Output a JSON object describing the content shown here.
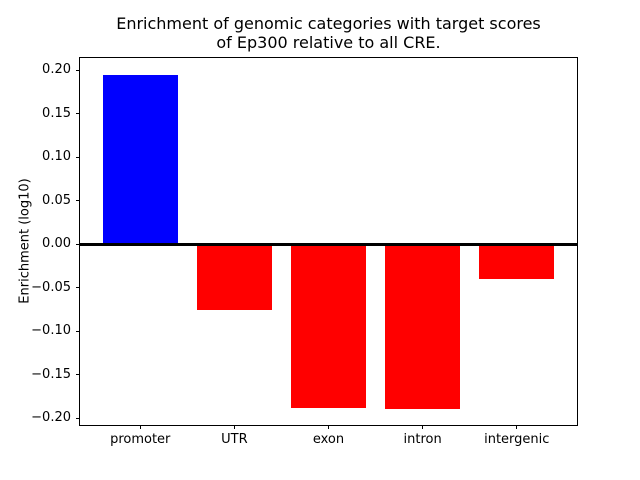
{
  "figure": {
    "background": "#ffffff"
  },
  "chart_data": {
    "type": "bar",
    "title": "Enrichment of genomic categories with target scores\nof Ep300 relative to all CRE.",
    "xlabel": "",
    "ylabel": "Enrichment (log10)",
    "categories": [
      "promoter",
      "UTR",
      "exon",
      "intron",
      "intergenic"
    ],
    "values": [
      0.195,
      -0.076,
      -0.189,
      -0.19,
      -0.04
    ],
    "bar_colors": [
      "#0000ff",
      "#ff0000",
      "#ff0000",
      "#ff0000",
      "#ff0000"
    ],
    "positive_color": "#0000ff",
    "negative_color": "#ff0000",
    "yticks": [
      0.2,
      0.15,
      0.1,
      0.05,
      0.0,
      -0.05,
      -0.1,
      -0.15,
      -0.2
    ],
    "ytick_labels": [
      "0.20",
      "0.15",
      "0.10",
      "0.05",
      "0.00",
      "−0.05",
      "−0.10",
      "−0.15",
      "−0.20"
    ],
    "ylim": [
      -0.208,
      0.214
    ],
    "xlim": [
      -0.64,
      4.64
    ],
    "bar_width": 0.8,
    "zero_line": true,
    "grid": false,
    "legend": null,
    "axis_color": "#000000",
    "background_color": "#ffffff"
  }
}
